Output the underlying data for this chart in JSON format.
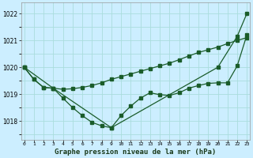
{
  "title": "Graphe pression niveau de la mer (hPa)",
  "bg_color": "#cceeff",
  "grid_color": "#aadddd",
  "line_color": "#1a5c2a",
  "ylim": [
    1017.3,
    1022.4
  ],
  "yticks": [
    1018,
    1019,
    1020,
    1021,
    1022
  ],
  "xlim": [
    -0.3,
    23.3
  ],
  "line1_x": [
    0,
    1,
    2,
    3,
    4,
    5,
    6,
    7,
    8,
    9,
    10,
    11,
    12,
    13,
    14,
    15,
    16,
    17,
    18,
    19,
    20,
    21,
    22,
    23
  ],
  "line1_y": [
    1020.0,
    1019.55,
    1019.25,
    1019.22,
    1019.18,
    1019.2,
    1019.25,
    1019.32,
    1019.42,
    1019.55,
    1019.65,
    1019.75,
    1019.85,
    1019.95,
    1020.05,
    1020.15,
    1020.28,
    1020.42,
    1020.55,
    1020.65,
    1020.75,
    1020.88,
    1021.0,
    1021.1
  ],
  "line2_x": [
    0,
    1,
    2,
    3,
    4,
    5,
    6,
    7,
    8,
    9,
    10,
    11,
    12,
    13,
    14,
    15,
    16,
    17,
    18,
    19,
    20,
    21,
    22,
    23
  ],
  "line2_y": [
    1020.0,
    1019.55,
    1019.25,
    1019.22,
    1018.85,
    1018.5,
    1018.2,
    1017.95,
    1017.82,
    1017.75,
    1018.2,
    1018.55,
    1018.85,
    1019.05,
    1018.98,
    1018.95,
    1019.05,
    1019.22,
    1019.32,
    1019.4,
    1019.42,
    1019.42,
    1020.05,
    1021.2
  ],
  "line3_x": [
    0,
    3,
    9,
    20,
    22,
    23
  ],
  "line3_y": [
    1020.0,
    1019.22,
    1017.75,
    1020.0,
    1021.15,
    1022.0
  ]
}
